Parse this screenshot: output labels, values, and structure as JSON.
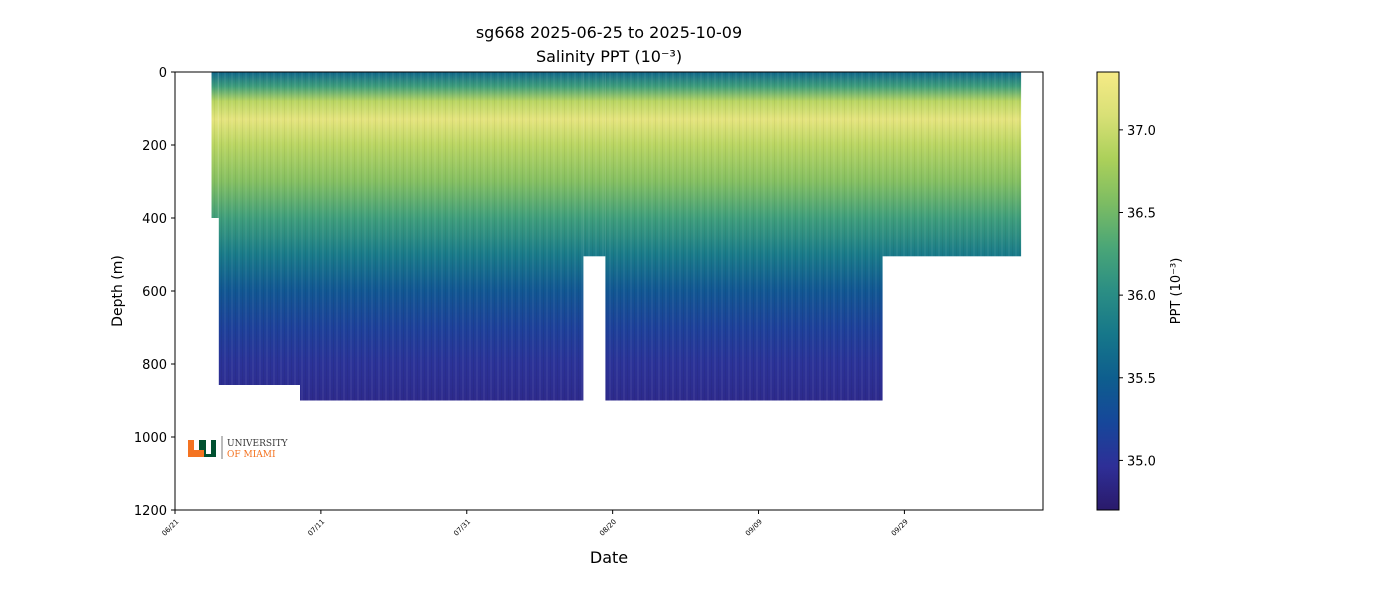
{
  "chart_data": {
    "type": "heatmap",
    "title": "sg668 2025-06-25 to 2025-10-09",
    "subtitle": "Salinity PPT (10⁻³)",
    "xlabel": "Date",
    "ylabel": "Depth (m)",
    "x_range": [
      "2025-06-21",
      "2025-10-18"
    ],
    "ylim": [
      1200,
      0
    ],
    "x_ticks": [
      {
        "date": "2025-06-21",
        "label": "06/21"
      },
      {
        "date": "2025-07-11",
        "label": "07/11"
      },
      {
        "date": "2025-07-31",
        "label": "07/31"
      },
      {
        "date": "2025-08-20",
        "label": "08/20"
      },
      {
        "date": "2025-09-09",
        "label": "09/09"
      },
      {
        "date": "2025-09-29",
        "label": "09/29"
      }
    ],
    "y_ticks": [
      0,
      200,
      400,
      600,
      800,
      1000,
      1200
    ],
    "colorbar": {
      "label": "PPT (10⁻³)",
      "range": [
        34.7,
        37.35
      ],
      "ticks": [
        "35.0",
        "35.5",
        "36.0",
        "36.5",
        "37.0"
      ],
      "colormap": "haline",
      "colors": [
        "#2a1a6b",
        "#2e2f97",
        "#16479a",
        "#0e5e8e",
        "#16778a",
        "#2b8e84",
        "#4aa677",
        "#7cbc63",
        "#abd05a",
        "#d8e076",
        "#f6ea86"
      ]
    },
    "coverage": [
      {
        "start": "2025-06-26",
        "end": "2025-06-27",
        "max_depth": 400
      },
      {
        "start": "2025-06-27",
        "end": "2025-07-01",
        "max_depth": 900
      },
      {
        "start": "2025-07-01",
        "end": "2025-08-16",
        "max_depth": 900
      },
      {
        "start": "2025-08-16",
        "end": "2025-08-19",
        "max_depth": 505
      },
      {
        "start": "2025-08-19",
        "end": "2025-09-26",
        "max_depth": 900
      },
      {
        "start": "2025-09-26",
        "end": "2025-10-15",
        "max_depth": 505
      }
    ],
    "salinity_profile": [
      {
        "depth": 0,
        "value": 35.6
      },
      {
        "depth": 40,
        "value": 36.2
      },
      {
        "depth": 80,
        "value": 36.9
      },
      {
        "depth": 130,
        "value": 37.2
      },
      {
        "depth": 200,
        "value": 36.9
      },
      {
        "depth": 300,
        "value": 36.6
      },
      {
        "depth": 400,
        "value": 36.2
      },
      {
        "depth": 500,
        "value": 35.8
      },
      {
        "depth": 600,
        "value": 35.4
      },
      {
        "depth": 700,
        "value": 35.15
      },
      {
        "depth": 800,
        "value": 35.0
      },
      {
        "depth": 900,
        "value": 34.9
      }
    ]
  },
  "logo": {
    "text_line1": "UNIVERSITY",
    "text_line2": "OF MIAMI",
    "green": "#005030",
    "orange": "#f47321"
  }
}
